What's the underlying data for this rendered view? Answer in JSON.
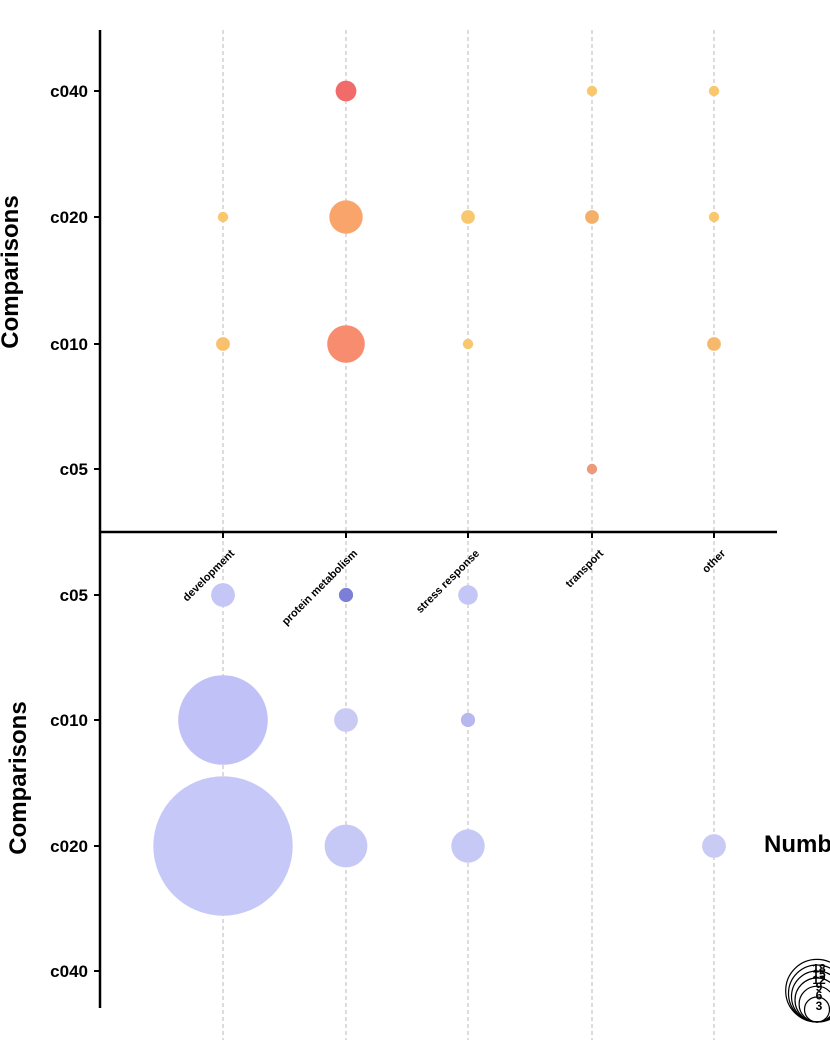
{
  "chart_data": [
    {
      "type": "scatter",
      "panel": "top",
      "ylabel": "Comparisons",
      "categories_x": [
        "development",
        "protein metabolism",
        "stress response",
        "transport",
        "other"
      ],
      "categories_y": [
        "c040",
        "c020",
        "c010",
        "c05"
      ],
      "points": [
        {
          "x": "protein metabolism",
          "y": "c040",
          "value": 5,
          "color": "#f26b6b"
        },
        {
          "x": "transport",
          "y": "c040",
          "value": 1,
          "color": "#f9c86e"
        },
        {
          "x": "other",
          "y": "c040",
          "value": 1,
          "color": "#f9c86e"
        },
        {
          "x": "development",
          "y": "c020",
          "value": 1,
          "color": "#f9c86e"
        },
        {
          "x": "protein metabolism",
          "y": "c020",
          "value": 14,
          "color": "#f9a46b"
        },
        {
          "x": "stress response",
          "y": "c020",
          "value": 2,
          "color": "#f9c86e"
        },
        {
          "x": "transport",
          "y": "c020",
          "value": 2,
          "color": "#f4b06b"
        },
        {
          "x": "other",
          "y": "c020",
          "value": 1,
          "color": "#f9c86e"
        },
        {
          "x": "development",
          "y": "c010",
          "value": 2,
          "color": "#f9c06e"
        },
        {
          "x": "protein metabolism",
          "y": "c010",
          "value": 18,
          "color": "#f78c6e"
        },
        {
          "x": "stress response",
          "y": "c010",
          "value": 1,
          "color": "#f9c86e"
        },
        {
          "x": "other",
          "y": "c010",
          "value": 2,
          "color": "#f6b96b"
        },
        {
          "x": "transport",
          "y": "c05",
          "value": 1,
          "color": "#eb9a7c"
        }
      ]
    },
    {
      "type": "scatter",
      "panel": "bottom",
      "ylabel": "Comparisons",
      "categories_x": [
        "development",
        "protein metabolism",
        "stress response",
        "transport",
        "other"
      ],
      "categories_y": [
        "c05",
        "c010",
        "c020",
        "c040"
      ],
      "points": [
        {
          "x": "development",
          "y": "c05",
          "value": 3,
          "color": "#c4c6f5"
        },
        {
          "x": "protein metabolism",
          "y": "c05",
          "value": 1,
          "color": "#7c7fd8"
        },
        {
          "x": "stress response",
          "y": "c05",
          "value": 2,
          "color": "#c4c6f5"
        },
        {
          "x": "development",
          "y": "c010",
          "value": 45,
          "color": "#c0c2f7"
        },
        {
          "x": "protein metabolism",
          "y": "c010",
          "value": 3,
          "color": "#c9cbf5"
        },
        {
          "x": "stress response",
          "y": "c010",
          "value": 1,
          "color": "#b6b8ef"
        },
        {
          "x": "development",
          "y": "c020",
          "value": 110,
          "color": "#c6c8f7"
        },
        {
          "x": "protein metabolism",
          "y": "c020",
          "value": 10,
          "color": "#c6c8f5"
        },
        {
          "x": "stress response",
          "y": "c020",
          "value": 6,
          "color": "#c6c8f5"
        },
        {
          "x": "other",
          "y": "c020",
          "value": 3,
          "color": "#c9cbf5"
        }
      ]
    }
  ],
  "legend": {
    "title": "Numb",
    "values": [
      18,
      15,
      12,
      9,
      6,
      3
    ]
  }
}
